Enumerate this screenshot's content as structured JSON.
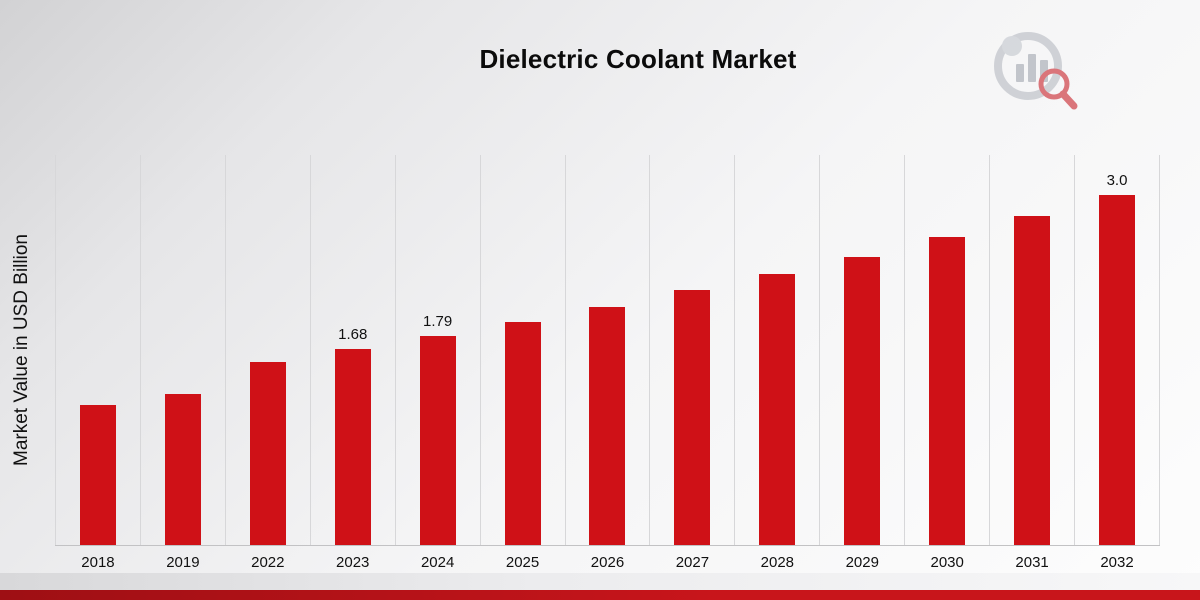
{
  "header": {
    "title": "Dielectric Coolant Market"
  },
  "branding": {
    "logo_icon": "market-research-chart-logo"
  },
  "colors": {
    "bar": "#cf1117",
    "gridline": "#d7d7d9",
    "footer_red": "#b3121a",
    "background_top": "#d2d2d4",
    "background_bottom": "#fdfdfd"
  },
  "chart_data": {
    "type": "bar",
    "title": "Dielectric Coolant Market",
    "xlabel": "",
    "ylabel": "Market Value in USD Billion",
    "categories": [
      "2018",
      "2019",
      "2022",
      "2023",
      "2024",
      "2025",
      "2026",
      "2027",
      "2028",
      "2029",
      "2030",
      "2031",
      "2032"
    ],
    "values": [
      1.2,
      1.29,
      1.57,
      1.68,
      1.79,
      1.91,
      2.04,
      2.18,
      2.32,
      2.47,
      2.64,
      2.82,
      3.0
    ],
    "data_labels": [
      "",
      "",
      "",
      "1.68",
      "1.79",
      "",
      "",
      "",
      "",
      "",
      "",
      "",
      "3.0"
    ],
    "ylim": [
      0,
      3.34
    ],
    "bar_color": "#cf1117",
    "grid": "vertical-only",
    "legend": "none"
  }
}
